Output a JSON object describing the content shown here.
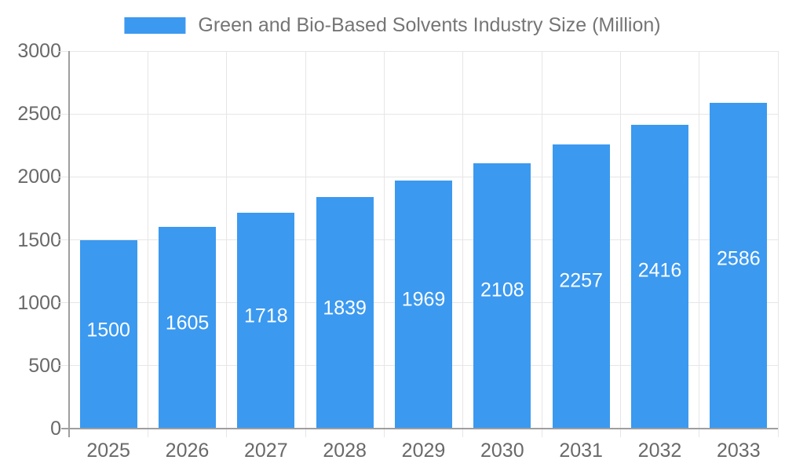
{
  "chart_data": {
    "type": "bar",
    "title": "Green and Bio-Based Solvents Industry Size (Million)",
    "categories": [
      "2025",
      "2026",
      "2027",
      "2028",
      "2029",
      "2030",
      "2031",
      "2032",
      "2033"
    ],
    "values": [
      1500,
      1605,
      1718,
      1839,
      1969,
      2108,
      2257,
      2416,
      2586
    ],
    "series": [
      {
        "name": "Green and Bio-Based Solvents Industry Size (Million)",
        "values": [
          1500,
          1605,
          1718,
          1839,
          1969,
          2108,
          2257,
          2416,
          2586
        ]
      }
    ],
    "xlabel": "",
    "ylabel": "",
    "ylim": [
      0,
      3000
    ],
    "yticks": [
      0,
      500,
      1000,
      1500,
      2000,
      2500,
      3000
    ],
    "grid": true,
    "legend_position": "top",
    "bar_labels_inside": true
  },
  "colors": {
    "bar": "#3B99F0",
    "bar_label": "#FFFFFF",
    "title_text": "#757575",
    "axis_text": "#696969",
    "gridline": "#E6E6E6",
    "axis_line": "#9E9E9E",
    "background": "#FFFFFF"
  }
}
